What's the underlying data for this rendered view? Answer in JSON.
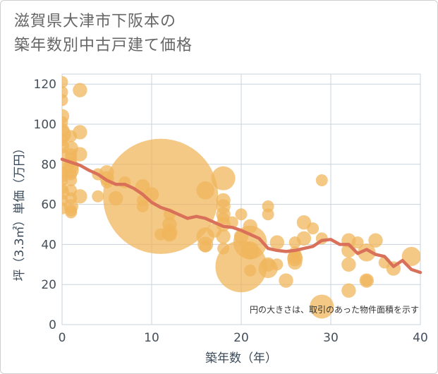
{
  "chart_data": {
    "type": "scatter",
    "title_lines": [
      "滋賀県大津市下阪本の",
      "築年数別中古戸建て価格"
    ],
    "xlabel": "築年数（年）",
    "ylabel": "坪（3.3㎡）単価（万円）",
    "xlim": [
      0,
      40
    ],
    "ylim": [
      0,
      125
    ],
    "xticks": [
      0,
      10,
      20,
      30,
      40
    ],
    "yticks": [
      0,
      20,
      40,
      60,
      80,
      100,
      120
    ],
    "note": "円の大きさは、取引のあった物件面積を示す",
    "colors": {
      "bubble": "#f0b55c",
      "line": "#d9705a",
      "grid": "#c8d3dd"
    },
    "bubbles": [
      {
        "x": 0,
        "y": 121,
        "s": 1
      },
      {
        "x": 0,
        "y": 116,
        "s": 1
      },
      {
        "x": 0,
        "y": 112,
        "s": 1
      },
      {
        "x": 0,
        "y": 104,
        "s": 1.2
      },
      {
        "x": 0,
        "y": 101,
        "s": 1
      },
      {
        "x": 0,
        "y": 97,
        "s": 1.2
      },
      {
        "x": 0,
        "y": 95,
        "s": 1.5
      },
      {
        "x": 0,
        "y": 92,
        "s": 1
      },
      {
        "x": 0,
        "y": 89,
        "s": 1.2
      },
      {
        "x": 0,
        "y": 85,
        "s": 1
      },
      {
        "x": 0,
        "y": 80,
        "s": 1
      },
      {
        "x": 0,
        "y": 76,
        "s": 1
      },
      {
        "x": 0,
        "y": 74,
        "s": 1
      },
      {
        "x": 0,
        "y": 72,
        "s": 1
      },
      {
        "x": 0,
        "y": 68,
        "s": 1
      },
      {
        "x": 0,
        "y": 66,
        "s": 1.2
      },
      {
        "x": 0,
        "y": 62,
        "s": 1
      },
      {
        "x": 0,
        "y": 58,
        "s": 1
      },
      {
        "x": 1,
        "y": 94,
        "s": 1
      },
      {
        "x": 1,
        "y": 88,
        "s": 1.2
      },
      {
        "x": 1,
        "y": 85,
        "s": 1
      },
      {
        "x": 1,
        "y": 83,
        "s": 1
      },
      {
        "x": 1,
        "y": 81,
        "s": 1
      },
      {
        "x": 1,
        "y": 79,
        "s": 1.3
      },
      {
        "x": 1,
        "y": 77,
        "s": 1.3
      },
      {
        "x": 1,
        "y": 75,
        "s": 1
      },
      {
        "x": 1,
        "y": 72,
        "s": 1
      },
      {
        "x": 1,
        "y": 67,
        "s": 1
      },
      {
        "x": 1,
        "y": 63,
        "s": 1
      },
      {
        "x": 1,
        "y": 59,
        "s": 1.2
      },
      {
        "x": 1,
        "y": 57,
        "s": 1
      },
      {
        "x": 1,
        "y": 56,
        "s": 1
      },
      {
        "x": 2,
        "y": 117,
        "s": 1.2
      },
      {
        "x": 2,
        "y": 96,
        "s": 1.2
      },
      {
        "x": 2,
        "y": 85,
        "s": 1.2
      },
      {
        "x": 2,
        "y": 64,
        "s": 1.2
      },
      {
        "x": 4,
        "y": 75,
        "s": 1
      },
      {
        "x": 4,
        "y": 64,
        "s": 1
      },
      {
        "x": 5,
        "y": 76,
        "s": 1.2
      },
      {
        "x": 5,
        "y": 73,
        "s": 1.2
      },
      {
        "x": 5,
        "y": 71,
        "s": 1
      },
      {
        "x": 6,
        "y": 63,
        "s": 1.2
      },
      {
        "x": 7,
        "y": 71,
        "s": 1
      },
      {
        "x": 9,
        "y": 69,
        "s": 1.2
      },
      {
        "x": 9,
        "y": 59,
        "s": 1
      },
      {
        "x": 9,
        "y": 62,
        "s": 1
      },
      {
        "x": 10,
        "y": 65,
        "s": 1.2
      },
      {
        "x": 11,
        "y": 64,
        "s": 9.6
      },
      {
        "x": 11,
        "y": 45,
        "s": 1
      },
      {
        "x": 12,
        "y": 45,
        "s": 1.2
      },
      {
        "x": 12,
        "y": 46,
        "s": 1.3
      },
      {
        "x": 12,
        "y": 50,
        "s": 1.2
      },
      {
        "x": 12,
        "y": 55,
        "s": 1
      },
      {
        "x": 16,
        "y": 67,
        "s": 1.5
      },
      {
        "x": 16,
        "y": 44,
        "s": 1.5
      },
      {
        "x": 16,
        "y": 40,
        "s": 1.3
      },
      {
        "x": 16,
        "y": 39,
        "s": 1
      },
      {
        "x": 17,
        "y": 47,
        "s": 1.2
      },
      {
        "x": 18,
        "y": 73,
        "s": 2
      },
      {
        "x": 18,
        "y": 62,
        "s": 1.2
      },
      {
        "x": 18,
        "y": 59,
        "s": 1.2
      },
      {
        "x": 18,
        "y": 55,
        "s": 1.2
      },
      {
        "x": 18,
        "y": 53,
        "s": 1
      },
      {
        "x": 18,
        "y": 50,
        "s": 1.2
      },
      {
        "x": 18,
        "y": 44,
        "s": 1.2
      },
      {
        "x": 18,
        "y": 38,
        "s": 1
      },
      {
        "x": 19,
        "y": 51,
        "s": 1
      },
      {
        "x": 20,
        "y": 55,
        "s": 1
      },
      {
        "x": 20,
        "y": 44,
        "s": 1.2
      },
      {
        "x": 20,
        "y": 29,
        "s": 4.3
      },
      {
        "x": 21,
        "y": 49,
        "s": 1.2
      },
      {
        "x": 21,
        "y": 41,
        "s": 2.8
      },
      {
        "x": 21,
        "y": 37,
        "s": 1.5
      },
      {
        "x": 21,
        "y": 27,
        "s": 1
      },
      {
        "x": 23,
        "y": 59,
        "s": 1
      },
      {
        "x": 23,
        "y": 55,
        "s": 1
      },
      {
        "x": 23,
        "y": 30,
        "s": 1.2
      },
      {
        "x": 23,
        "y": 28,
        "s": 1.6
      },
      {
        "x": 24,
        "y": 41,
        "s": 1.2
      },
      {
        "x": 24,
        "y": 30,
        "s": 1
      },
      {
        "x": 25,
        "y": 22,
        "s": 1.2
      },
      {
        "x": 26,
        "y": 41,
        "s": 1
      },
      {
        "x": 26,
        "y": 36,
        "s": 1
      },
      {
        "x": 26,
        "y": 34,
        "s": 1.2
      },
      {
        "x": 26,
        "y": 33,
        "s": 1.3
      },
      {
        "x": 26,
        "y": 31,
        "s": 1.2
      },
      {
        "x": 27,
        "y": 51,
        "s": 1.2
      },
      {
        "x": 27,
        "y": 43,
        "s": 1.2
      },
      {
        "x": 28,
        "y": 48,
        "s": 1
      },
      {
        "x": 29,
        "y": 72,
        "s": 1
      },
      {
        "x": 29,
        "y": 9,
        "s": 2
      },
      {
        "x": 29,
        "y": 43,
        "s": 1
      },
      {
        "x": 32,
        "y": 42,
        "s": 1.2
      },
      {
        "x": 32,
        "y": 37,
        "s": 1.2
      },
      {
        "x": 32,
        "y": 30,
        "s": 1.2
      },
      {
        "x": 32,
        "y": 17,
        "s": 1.2
      },
      {
        "x": 33,
        "y": 41,
        "s": 1
      },
      {
        "x": 34,
        "y": 36,
        "s": 1.5
      },
      {
        "x": 34,
        "y": 22,
        "s": 1
      },
      {
        "x": 34,
        "y": 22,
        "s": 1.2
      },
      {
        "x": 35,
        "y": 42,
        "s": 1.2
      },
      {
        "x": 36,
        "y": 31,
        "s": 1
      },
      {
        "x": 37,
        "y": 28,
        "s": 1.2
      },
      {
        "x": 39,
        "y": 34,
        "s": 1.6
      }
    ],
    "trend": {
      "x": [
        0,
        1,
        2,
        3,
        4,
        5,
        6,
        7,
        8,
        9,
        10,
        11,
        12,
        13,
        14,
        15,
        16,
        17,
        18,
        19,
        20,
        21,
        22,
        23,
        24,
        25,
        26,
        27,
        28,
        29,
        30,
        31,
        32,
        33,
        34,
        35,
        36,
        37,
        38,
        39,
        40
      ],
      "y": [
        82.5,
        81,
        79.5,
        77,
        75,
        72,
        70,
        70,
        68,
        65,
        61,
        58.5,
        57,
        55,
        53,
        54,
        53,
        51,
        49,
        48.5,
        47,
        45,
        43,
        38,
        37,
        36.5,
        37,
        38,
        39,
        42,
        42.5,
        40,
        40,
        35.5,
        37.5,
        35,
        34,
        29,
        32,
        27.5,
        26
      ]
    }
  }
}
